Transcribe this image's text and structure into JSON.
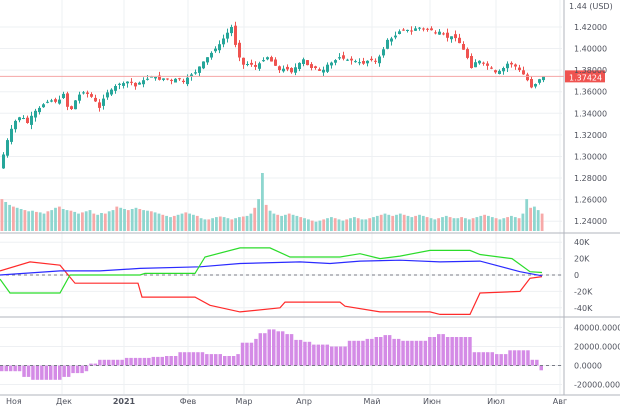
{
  "chart_data": [
    {
      "type": "candlestick",
      "panel": "price",
      "currency_label": "1.44 (USD)",
      "current_price_label": "1.37424",
      "ylim": [
        1.23,
        1.445
      ],
      "y_ticks": [
        "1.42000",
        "1.40000",
        "1.38000",
        "1.36000",
        "1.34000",
        "1.32000",
        "1.30000",
        "1.28000",
        "1.26000",
        "1.24000"
      ],
      "y_tick_values": [
        1.42,
        1.4,
        1.38,
        1.36,
        1.34,
        1.32,
        1.3,
        1.28,
        1.26,
        1.24
      ],
      "x_labels": [
        "Ноя",
        "Дек",
        "2021",
        "Фев",
        "Мар",
        "Апр",
        "Май",
        "Июн",
        "Июл",
        "Авг"
      ],
      "price_path": [
        [
          0,
          1.289
        ],
        [
          5,
          1.305
        ],
        [
          10,
          1.322
        ],
        [
          16,
          1.333
        ],
        [
          22,
          1.338
        ],
        [
          28,
          1.331
        ],
        [
          34,
          1.341
        ],
        [
          40,
          1.345
        ],
        [
          46,
          1.35
        ],
        [
          52,
          1.352
        ],
        [
          58,
          1.35
        ],
        [
          64,
          1.358
        ],
        [
          70,
          1.34
        ],
        [
          76,
          1.352
        ],
        [
          82,
          1.36
        ],
        [
          88,
          1.358
        ],
        [
          94,
          1.354
        ],
        [
          100,
          1.345
        ],
        [
          106,
          1.358
        ],
        [
          112,
          1.362
        ],
        [
          118,
          1.367
        ],
        [
          124,
          1.368
        ],
        [
          130,
          1.37
        ],
        [
          136,
          1.365
        ],
        [
          142,
          1.37
        ],
        [
          148,
          1.372
        ],
        [
          154,
          1.375
        ],
        [
          160,
          1.371
        ],
        [
          166,
          1.373
        ],
        [
          172,
          1.37
        ],
        [
          178,
          1.373
        ],
        [
          184,
          1.369
        ],
        [
          190,
          1.375
        ],
        [
          196,
          1.378
        ],
        [
          202,
          1.386
        ],
        [
          208,
          1.392
        ],
        [
          214,
          1.398
        ],
        [
          220,
          1.404
        ],
        [
          226,
          1.412
        ],
        [
          232,
          1.42
        ],
        [
          238,
          1.395
        ],
        [
          244,
          1.385
        ],
        [
          250,
          1.386
        ],
        [
          256,
          1.383
        ],
        [
          262,
          1.388
        ],
        [
          268,
          1.392
        ],
        [
          274,
          1.386
        ],
        [
          280,
          1.38
        ],
        [
          286,
          1.382
        ],
        [
          292,
          1.378
        ],
        [
          298,
          1.385
        ],
        [
          304,
          1.39
        ],
        [
          310,
          1.382
        ],
        [
          316,
          1.382
        ],
        [
          322,
          1.378
        ],
        [
          328,
          1.385
        ],
        [
          334,
          1.388
        ],
        [
          340,
          1.392
        ],
        [
          346,
          1.39
        ],
        [
          352,
          1.389
        ],
        [
          358,
          1.388
        ],
        [
          364,
          1.386
        ],
        [
          370,
          1.39
        ],
        [
          376,
          1.388
        ],
        [
          382,
          1.395
        ],
        [
          388,
          1.408
        ],
        [
          394,
          1.41
        ],
        [
          400,
          1.416
        ],
        [
          406,
          1.418
        ],
        [
          412,
          1.416
        ],
        [
          418,
          1.42
        ],
        [
          424,
          1.418
        ],
        [
          430,
          1.418
        ],
        [
          436,
          1.415
        ],
        [
          442,
          1.416
        ],
        [
          448,
          1.41
        ],
        [
          454,
          1.412
        ],
        [
          460,
          1.405
        ],
        [
          466,
          1.396
        ],
        [
          472,
          1.382
        ],
        [
          478,
          1.39
        ],
        [
          484,
          1.386
        ],
        [
          490,
          1.383
        ],
        [
          496,
          1.378
        ],
        [
          502,
          1.38
        ],
        [
          508,
          1.386
        ],
        [
          514,
          1.385
        ],
        [
          520,
          1.38
        ],
        [
          526,
          1.374
        ],
        [
          532,
          1.364
        ],
        [
          537,
          1.368
        ],
        [
          542,
          1.374
        ]
      ],
      "price_line_color": "#f4a6a6",
      "up_color": "#26a69a",
      "down_color": "#ef5350",
      "volume_bars": [
        0.55,
        0.5,
        0.45,
        0.42,
        0.4,
        0.38,
        0.36,
        0.34,
        0.35,
        0.33,
        0.32,
        0.3,
        0.34,
        0.36,
        0.4,
        0.42,
        0.38,
        0.36,
        0.35,
        0.33,
        0.3,
        0.32,
        0.34,
        0.36,
        0.3,
        0.28,
        0.31,
        0.3,
        0.34,
        0.36,
        0.42,
        0.4,
        0.38,
        0.36,
        0.38,
        0.4,
        0.38,
        0.36,
        0.35,
        0.34,
        0.32,
        0.3,
        0.28,
        0.26,
        0.24,
        0.26,
        0.28,
        0.3,
        0.32,
        0.3,
        0.28,
        0.26,
        0.22,
        0.2,
        0.2,
        0.22,
        0.24,
        0.25,
        0.24,
        0.22,
        0.2,
        0.22,
        0.24,
        0.25,
        0.26,
        0.3,
        0.4,
        0.55,
        1.0,
        0.45,
        0.35,
        0.3,
        0.28,
        0.26,
        0.28,
        0.3,
        0.28,
        0.26,
        0.24,
        0.22,
        0.2,
        0.18,
        0.16,
        0.18,
        0.2,
        0.22,
        0.24,
        0.22,
        0.2,
        0.18,
        0.2,
        0.22,
        0.24,
        0.22,
        0.2,
        0.2,
        0.22,
        0.24,
        0.26,
        0.28,
        0.3,
        0.28,
        0.26,
        0.28,
        0.3,
        0.28,
        0.26,
        0.24,
        0.26,
        0.28,
        0.26,
        0.24,
        0.22,
        0.2,
        0.22,
        0.24,
        0.26,
        0.24,
        0.22,
        0.22,
        0.24,
        0.22,
        0.2,
        0.22,
        0.24,
        0.26,
        0.28,
        0.26,
        0.24,
        0.22,
        0.2,
        0.22,
        0.24,
        0.26,
        0.24,
        0.22,
        0.3,
        0.55,
        0.4,
        0.42,
        0.36,
        0.3
      ],
      "volume_max_value": 1.0
    },
    {
      "type": "line",
      "panel": "cot",
      "ylim": [
        -50000,
        50000
      ],
      "y_ticks": [
        "40K",
        "20K",
        "0",
        "-20K",
        "-40K"
      ],
      "y_tick_values": [
        40000,
        20000,
        0,
        -20000,
        -40000
      ],
      "series": [
        {
          "color": "#ff2b2b",
          "values": [
            [
              0,
              5000
            ],
            [
              30,
              16000
            ],
            [
              60,
              12000
            ],
            [
              75,
              -10000
            ],
            [
              138,
              -10000
            ],
            [
              142,
              -27000
            ],
            [
              195,
              -27000
            ],
            [
              210,
              -37000
            ],
            [
              240,
              -45000
            ],
            [
              280,
              -40000
            ],
            [
              285,
              -33000
            ],
            [
              340,
              -33000
            ],
            [
              345,
              -38000
            ],
            [
              380,
              -45000
            ],
            [
              430,
              -45000
            ],
            [
              440,
              -48000
            ],
            [
              470,
              -48000
            ],
            [
              480,
              -22000
            ],
            [
              520,
              -20000
            ],
            [
              530,
              -4000
            ],
            [
              542,
              -2000
            ]
          ]
        },
        {
          "color": "#2b2bff",
          "values": [
            [
              0,
              0
            ],
            [
              60,
              5000
            ],
            [
              100,
              5000
            ],
            [
              140,
              8000
            ],
            [
              200,
              10000
            ],
            [
              240,
              14000
            ],
            [
              300,
              16000
            ],
            [
              330,
              14000
            ],
            [
              360,
              17000
            ],
            [
              400,
              18000
            ],
            [
              440,
              16000
            ],
            [
              480,
              17000
            ],
            [
              520,
              4000
            ],
            [
              542,
              -1000
            ]
          ]
        },
        {
          "color": "#2bdc2b",
          "values": [
            [
              0,
              -5000
            ],
            [
              10,
              -22000
            ],
            [
              60,
              -22000
            ],
            [
              70,
              0
            ],
            [
              140,
              0
            ],
            [
              145,
              2000
            ],
            [
              195,
              2000
            ],
            [
              205,
              22000
            ],
            [
              240,
              33000
            ],
            [
              270,
              33000
            ],
            [
              290,
              22000
            ],
            [
              340,
              22000
            ],
            [
              360,
              26000
            ],
            [
              380,
              20000
            ],
            [
              400,
              23000
            ],
            [
              430,
              30000
            ],
            [
              470,
              30000
            ],
            [
              480,
              25000
            ],
            [
              512,
              20000
            ],
            [
              530,
              4000
            ],
            [
              542,
              3000
            ]
          ]
        }
      ]
    },
    {
      "type": "bar",
      "panel": "net_position",
      "ylim": [
        -30000,
        50000
      ],
      "y_ticks": [
        "40000.0000",
        "20000.0000",
        "0.0000",
        "-20000.0000"
      ],
      "y_tick_values": [
        40000,
        20000,
        0,
        -20000
      ],
      "bar_color": "#d48be6",
      "values": [
        -6000,
        -6000,
        -6000,
        -6000,
        -6000,
        -12000,
        -12000,
        -15000,
        -15000,
        -15000,
        -15000,
        -15000,
        -15000,
        -15000,
        -12000,
        -12000,
        -8000,
        -8000,
        -8000,
        -6000,
        2000,
        2000,
        6000,
        6000,
        6000,
        6000,
        6000,
        6000,
        8000,
        8000,
        8000,
        8000,
        8000,
        8000,
        9000,
        9000,
        9000,
        10000,
        10000,
        10000,
        14000,
        14000,
        14000,
        14000,
        14000,
        14000,
        12000,
        12000,
        12000,
        12000,
        10000,
        10000,
        10000,
        12000,
        24000,
        24000,
        24000,
        28000,
        34000,
        34000,
        38000,
        38000,
        36000,
        36000,
        33000,
        33000,
        27000,
        27000,
        25000,
        25000,
        22000,
        22000,
        22000,
        22000,
        20000,
        20000,
        20000,
        20000,
        26000,
        26000,
        26000,
        26000,
        28000,
        28000,
        30000,
        30000,
        32000,
        32000,
        28000,
        28000,
        26000,
        26000,
        26000,
        26000,
        26000,
        26000,
        30000,
        30000,
        33000,
        33000,
        30000,
        30000,
        30000,
        30000,
        30000,
        30000,
        14000,
        14000,
        14000,
        14000,
        14000,
        12000,
        12000,
        12000,
        16000,
        16000,
        16000,
        16000,
        16000,
        6000,
        6000,
        -5000
      ]
    }
  ]
}
